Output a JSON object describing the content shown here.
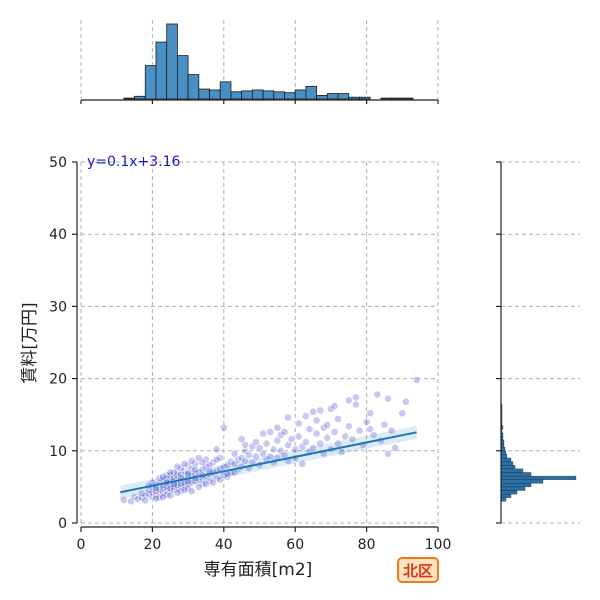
{
  "chart_data": {
    "type": "scatter",
    "title": "",
    "xlabel": "専有面積[m2]",
    "ylabel": "賃料[万円]",
    "xlim": [
      0,
      100
    ],
    "ylim": [
      0,
      50
    ],
    "x_ticks": [
      "0",
      "20",
      "40",
      "60",
      "80",
      "100"
    ],
    "y_ticks": [
      "0",
      "10",
      "20",
      "30",
      "40",
      "50"
    ],
    "grid": true,
    "point_color": "#3a3ad0",
    "regression": {
      "slope": 0.1,
      "intercept": 3.16,
      "x_range": [
        11,
        94
      ],
      "label": "y=0.1x+3.16",
      "color": "#1f77b4",
      "label_color": "#1a1acc"
    },
    "points": [
      [
        12,
        3.2
      ],
      [
        14,
        3.0
      ],
      [
        15,
        3.6
      ],
      [
        16,
        3.3
      ],
      [
        17,
        3.5
      ],
      [
        17,
        4.1
      ],
      [
        18,
        3.8
      ],
      [
        18,
        3.1
      ],
      [
        19,
        4.0
      ],
      [
        19,
        4.6
      ],
      [
        20,
        3.6
      ],
      [
        20,
        4.2
      ],
      [
        20,
        5.0
      ],
      [
        21,
        3.9
      ],
      [
        21,
        4.4
      ],
      [
        21,
        5.2
      ],
      [
        22,
        4.0
      ],
      [
        22,
        4.6
      ],
      [
        22,
        5.5
      ],
      [
        22,
        3.5
      ],
      [
        23,
        4.2
      ],
      [
        23,
        4.8
      ],
      [
        23,
        5.9
      ],
      [
        23,
        5.2
      ],
      [
        24,
        4.4
      ],
      [
        24,
        5.0
      ],
      [
        24,
        6.1
      ],
      [
        24,
        3.9
      ],
      [
        25,
        4.5
      ],
      [
        25,
        5.2
      ],
      [
        25,
        6.0
      ],
      [
        25,
        4.8
      ],
      [
        25,
        6.6
      ],
      [
        26,
        4.6
      ],
      [
        26,
        5.4
      ],
      [
        26,
        6.3
      ],
      [
        26,
        5.0
      ],
      [
        26,
        5.8
      ],
      [
        27,
        4.8
      ],
      [
        27,
        5.6
      ],
      [
        27,
        6.5
      ],
      [
        27,
        5.2
      ],
      [
        27,
        7.0
      ],
      [
        28,
        5.0
      ],
      [
        28,
        5.8
      ],
      [
        28,
        6.8
      ],
      [
        28,
        5.4
      ],
      [
        28,
        4.4
      ],
      [
        29,
        5.2
      ],
      [
        29,
        6.0
      ],
      [
        29,
        7.2
      ],
      [
        29,
        5.6
      ],
      [
        30,
        5.4
      ],
      [
        30,
        6.2
      ],
      [
        30,
        7.0
      ],
      [
        30,
        4.8
      ],
      [
        30,
        8.0
      ],
      [
        31,
        5.6
      ],
      [
        31,
        6.5
      ],
      [
        31,
        7.5
      ],
      [
        32,
        5.8
      ],
      [
        32,
        6.8
      ],
      [
        32,
        8.2
      ],
      [
        33,
        6.0
      ],
      [
        33,
        7.0
      ],
      [
        34,
        6.2
      ],
      [
        34,
        7.4
      ],
      [
        34,
        5.4
      ],
      [
        35,
        6.5
      ],
      [
        35,
        7.8
      ],
      [
        35,
        8.8
      ],
      [
        36,
        6.8
      ],
      [
        36,
        5.8
      ],
      [
        37,
        7.0
      ],
      [
        37,
        8.4
      ],
      [
        38,
        7.2
      ],
      [
        38,
        6.2
      ],
      [
        39,
        7.5
      ],
      [
        39,
        9.0
      ],
      [
        40,
        7.8
      ],
      [
        40,
        6.6
      ],
      [
        40,
        13.2
      ],
      [
        41,
        8.0
      ],
      [
        41,
        6.4
      ],
      [
        42,
        8.5
      ],
      [
        42,
        7.0
      ],
      [
        43,
        8.2
      ],
      [
        43,
        9.6
      ],
      [
        44,
        7.4
      ],
      [
        44,
        8.8
      ],
      [
        45,
        9.0
      ],
      [
        45,
        7.8
      ],
      [
        46,
        8.6
      ],
      [
        46,
        10.0
      ],
      [
        47,
        7.6
      ],
      [
        47,
        9.4
      ],
      [
        48,
        8.4
      ],
      [
        48,
        10.6
      ],
      [
        49,
        9.2
      ],
      [
        50,
        8.0
      ],
      [
        50,
        10.4
      ],
      [
        51,
        9.6
      ],
      [
        52,
        8.8
      ],
      [
        52,
        11.0
      ],
      [
        53,
        9.2
      ],
      [
        54,
        10.2
      ],
      [
        54,
        8.4
      ],
      [
        55,
        11.4
      ],
      [
        55,
        9.0
      ],
      [
        56,
        10.0
      ],
      [
        56,
        12.2
      ],
      [
        57,
        9.4
      ],
      [
        58,
        10.8
      ],
      [
        58,
        8.6
      ],
      [
        59,
        11.6
      ],
      [
        60,
        10.2
      ],
      [
        60,
        9.0
      ],
      [
        61,
        12.0
      ],
      [
        62,
        10.6
      ],
      [
        62,
        8.2
      ],
      [
        63,
        11.2
      ],
      [
        64,
        13.0
      ],
      [
        64,
        9.8
      ],
      [
        65,
        15.4
      ],
      [
        65,
        10.4
      ],
      [
        66,
        12.4
      ],
      [
        66,
        14.2
      ],
      [
        67,
        11.0
      ],
      [
        68,
        9.6
      ],
      [
        68,
        13.2
      ],
      [
        69,
        11.8
      ],
      [
        70,
        10.2
      ],
      [
        70,
        15.8
      ],
      [
        71,
        12.6
      ],
      [
        72,
        11.0
      ],
      [
        72,
        14.4
      ],
      [
        73,
        9.8
      ],
      [
        74,
        12.0
      ],
      [
        75,
        17.0
      ],
      [
        75,
        13.4
      ],
      [
        76,
        11.6
      ],
      [
        77,
        17.4
      ],
      [
        78,
        12.8
      ],
      [
        79,
        10.8
      ],
      [
        80,
        14.0
      ],
      [
        81,
        13.0
      ],
      [
        82,
        12.2
      ],
      [
        83,
        17.8
      ],
      [
        84,
        11.4
      ],
      [
        85,
        13.6
      ],
      [
        86,
        9.6
      ],
      [
        87,
        12.8
      ],
      [
        88,
        10.4
      ],
      [
        90,
        15.2
      ],
      [
        91,
        16.8
      ],
      [
        94,
        19.8
      ],
      [
        38,
        10.2
      ],
      [
        46,
        10.8
      ],
      [
        53,
        12.6
      ],
      [
        58,
        14.6
      ],
      [
        20,
        5.6
      ],
      [
        22,
        6.2
      ],
      [
        24,
        6.6
      ],
      [
        26,
        7.0
      ],
      [
        28,
        7.6
      ],
      [
        30,
        6.8
      ],
      [
        32,
        7.4
      ],
      [
        34,
        8.4
      ],
      [
        36,
        8.0
      ],
      [
        38,
        8.8
      ],
      [
        25,
        3.8
      ],
      [
        27,
        4.2
      ],
      [
        29,
        4.6
      ],
      [
        31,
        4.4
      ],
      [
        33,
        5.0
      ],
      [
        35,
        5.4
      ],
      [
        37,
        5.6
      ],
      [
        39,
        6.0
      ],
      [
        41,
        6.8
      ],
      [
        43,
        7.0
      ],
      [
        24,
        5.6
      ],
      [
        26,
        5.4
      ],
      [
        28,
        6.2
      ],
      [
        30,
        5.8
      ],
      [
        32,
        6.2
      ],
      [
        34,
        6.6
      ],
      [
        36,
        7.2
      ],
      [
        23,
        6.4
      ],
      [
        25,
        7.0
      ],
      [
        27,
        7.8
      ],
      [
        29,
        8.2
      ],
      [
        31,
        8.6
      ],
      [
        33,
        9.0
      ],
      [
        21,
        4.8
      ],
      [
        19,
        5.2
      ],
      [
        21,
        3.4
      ],
      [
        23,
        3.6
      ],
      [
        45,
        11.6
      ],
      [
        49,
        11.2
      ],
      [
        51,
        12.4
      ],
      [
        55,
        13.2
      ],
      [
        57,
        12.6
      ],
      [
        61,
        13.8
      ],
      [
        63,
        14.8
      ],
      [
        67,
        15.6
      ],
      [
        69,
        13.6
      ],
      [
        71,
        16.2
      ],
      [
        77,
        16.4
      ],
      [
        81,
        15.2
      ],
      [
        86,
        17.2
      ]
    ],
    "top_histogram": {
      "x_ticks": [
        "0",
        "20",
        "40",
        "60",
        "80",
        "100"
      ],
      "bin_edges": [
        12,
        15,
        18,
        21,
        24,
        27,
        30,
        33,
        36,
        39,
        42,
        45,
        48,
        51,
        54,
        57,
        60,
        63,
        66,
        69,
        72,
        75,
        78,
        81,
        84,
        87,
        90,
        93,
        96
      ],
      "counts": [
        1,
        3,
        37,
        63,
        83,
        48,
        27,
        11,
        10,
        19,
        8,
        9,
        10,
        9,
        8,
        7,
        10,
        14,
        4,
        6,
        6,
        2,
        2,
        0,
        1,
        1,
        1,
        0
      ],
      "color": "#4a90c4"
    },
    "right_histogram": {
      "y_ticks": [
        "0",
        "10",
        "20",
        "30",
        "40",
        "50"
      ],
      "bin_edges": [
        3.0,
        3.5,
        4.0,
        4.5,
        5.0,
        5.5,
        6.0,
        6.5,
        7.0,
        7.5,
        8.0,
        8.5,
        9.0,
        9.5,
        10.0,
        10.5,
        11.0,
        11.5,
        12.0,
        12.5,
        13.0,
        13.5,
        14.0,
        14.5,
        15.0,
        15.5,
        16.0,
        16.5
      ],
      "counts": [
        5,
        10,
        16,
        24,
        30,
        42,
        75,
        30,
        22,
        14,
        12,
        10,
        6,
        5,
        4,
        3,
        3,
        2,
        2,
        1,
        2,
        1,
        1,
        1,
        1,
        1,
        1
      ],
      "color": "#2a6fa6"
    }
  },
  "badge": {
    "label": "北区"
  }
}
